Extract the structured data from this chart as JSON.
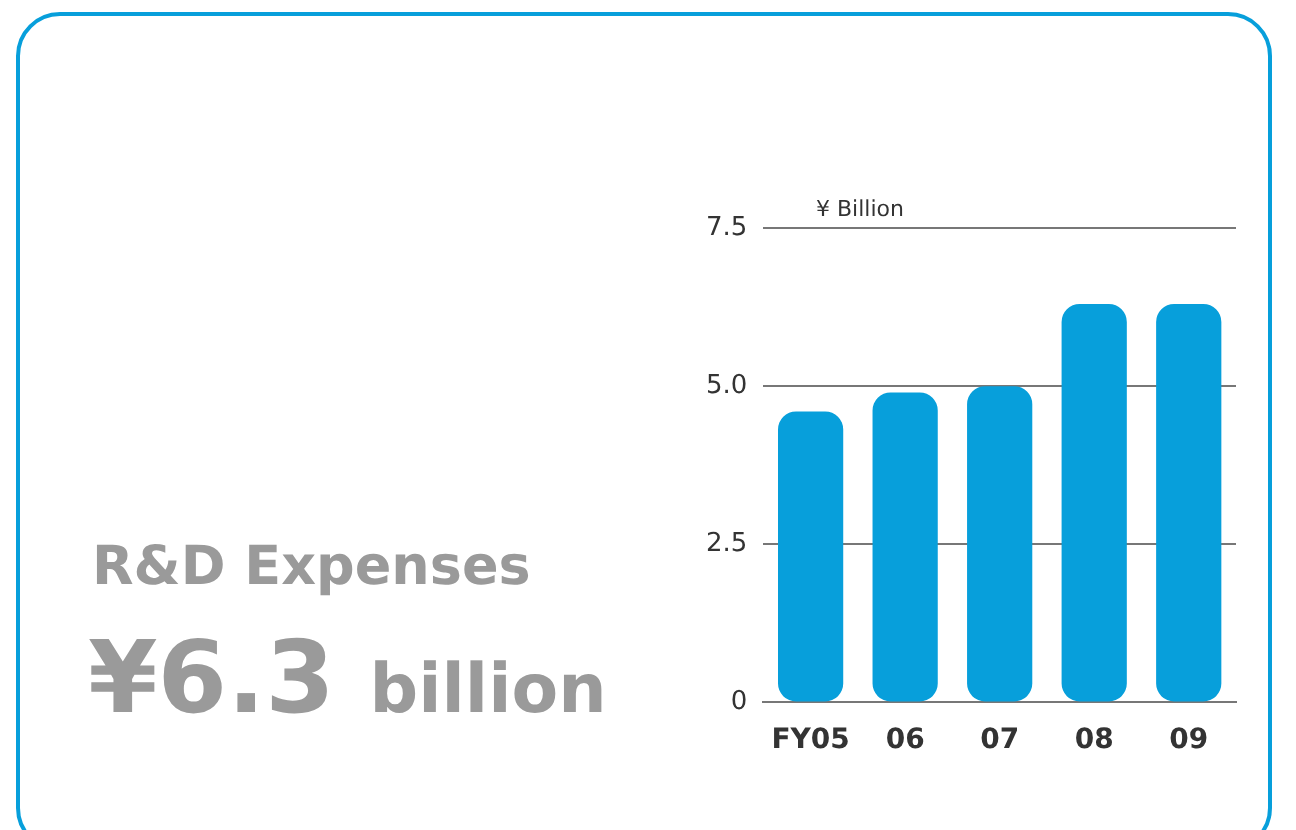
{
  "chart_data": {
    "type": "bar",
    "ylabel": "¥ Billion",
    "categories": [
      "FY05",
      "06",
      "07",
      "08",
      "09"
    ],
    "values": [
      4.6,
      4.9,
      5.0,
      6.3,
      6.3
    ],
    "color": "#079fdb",
    "ylim": [
      0,
      7.5
    ],
    "yticks": [
      {
        "value": 0,
        "label": "0"
      },
      2.5,
      {
        "value": 5,
        "label": "5.0"
      },
      7.5
    ],
    "grid": "y",
    "legend": false,
    "annotations": [
      "R&D Expenses",
      "¥6.3 billion"
    ]
  }
}
